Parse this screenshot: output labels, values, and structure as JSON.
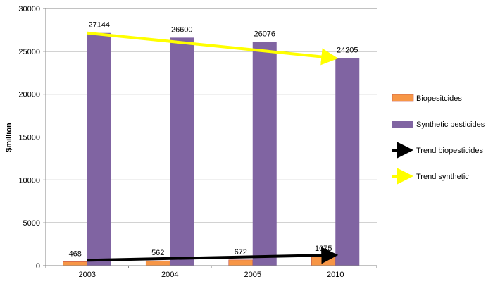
{
  "chart_data": {
    "type": "bar",
    "categories": [
      "2003",
      "2004",
      "2005",
      "2010"
    ],
    "ylabel": "$million",
    "xlabel": "",
    "ylim": [
      0,
      30000
    ],
    "yticks": [
      0,
      5000,
      10000,
      15000,
      20000,
      25000,
      30000
    ],
    "grid": true,
    "legend_position": "right",
    "series": [
      {
        "name": "Biopesitcides",
        "kind": "bar",
        "color": "#f79646",
        "values": [
          468,
          562,
          672,
          1075
        ]
      },
      {
        "name": "Synthetic pesticides",
        "kind": "bar",
        "color": "#8064a2",
        "values": [
          27144,
          26600,
          26076,
          24205
        ]
      },
      {
        "name": "Trend biopesticides",
        "kind": "trend",
        "color": "#000000",
        "from": [
          0,
          468
        ],
        "to": [
          3,
          1075
        ]
      },
      {
        "name": "Trend synthetic",
        "kind": "trend",
        "color": "#ffff00",
        "from": [
          0,
          27144
        ],
        "to": [
          3,
          24205
        ]
      }
    ]
  }
}
